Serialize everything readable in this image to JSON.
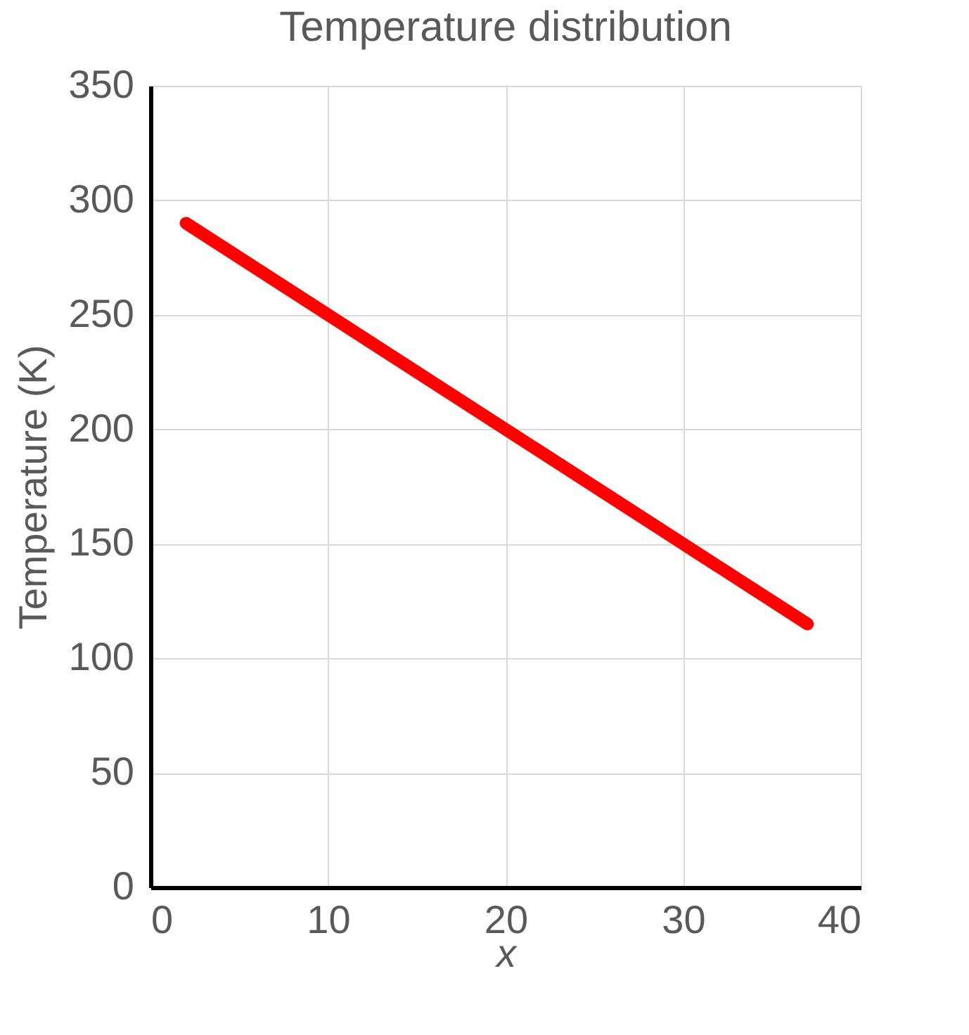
{
  "chart_data": {
    "type": "line",
    "title": "Temperature distribution",
    "xlabel": "x",
    "ylabel": "Temperature (K)",
    "x": [
      2,
      37
    ],
    "series": [
      {
        "color": "#ff0000",
        "values": [
          290,
          115
        ]
      }
    ],
    "xlim": [
      0,
      40
    ],
    "xticks": [
      0,
      10,
      20,
      30,
      40
    ],
    "ylim": [
      0,
      350
    ],
    "yticks": [
      0,
      50,
      100,
      150,
      200,
      250,
      300,
      350
    ],
    "grid": true,
    "line_style": "solid"
  }
}
